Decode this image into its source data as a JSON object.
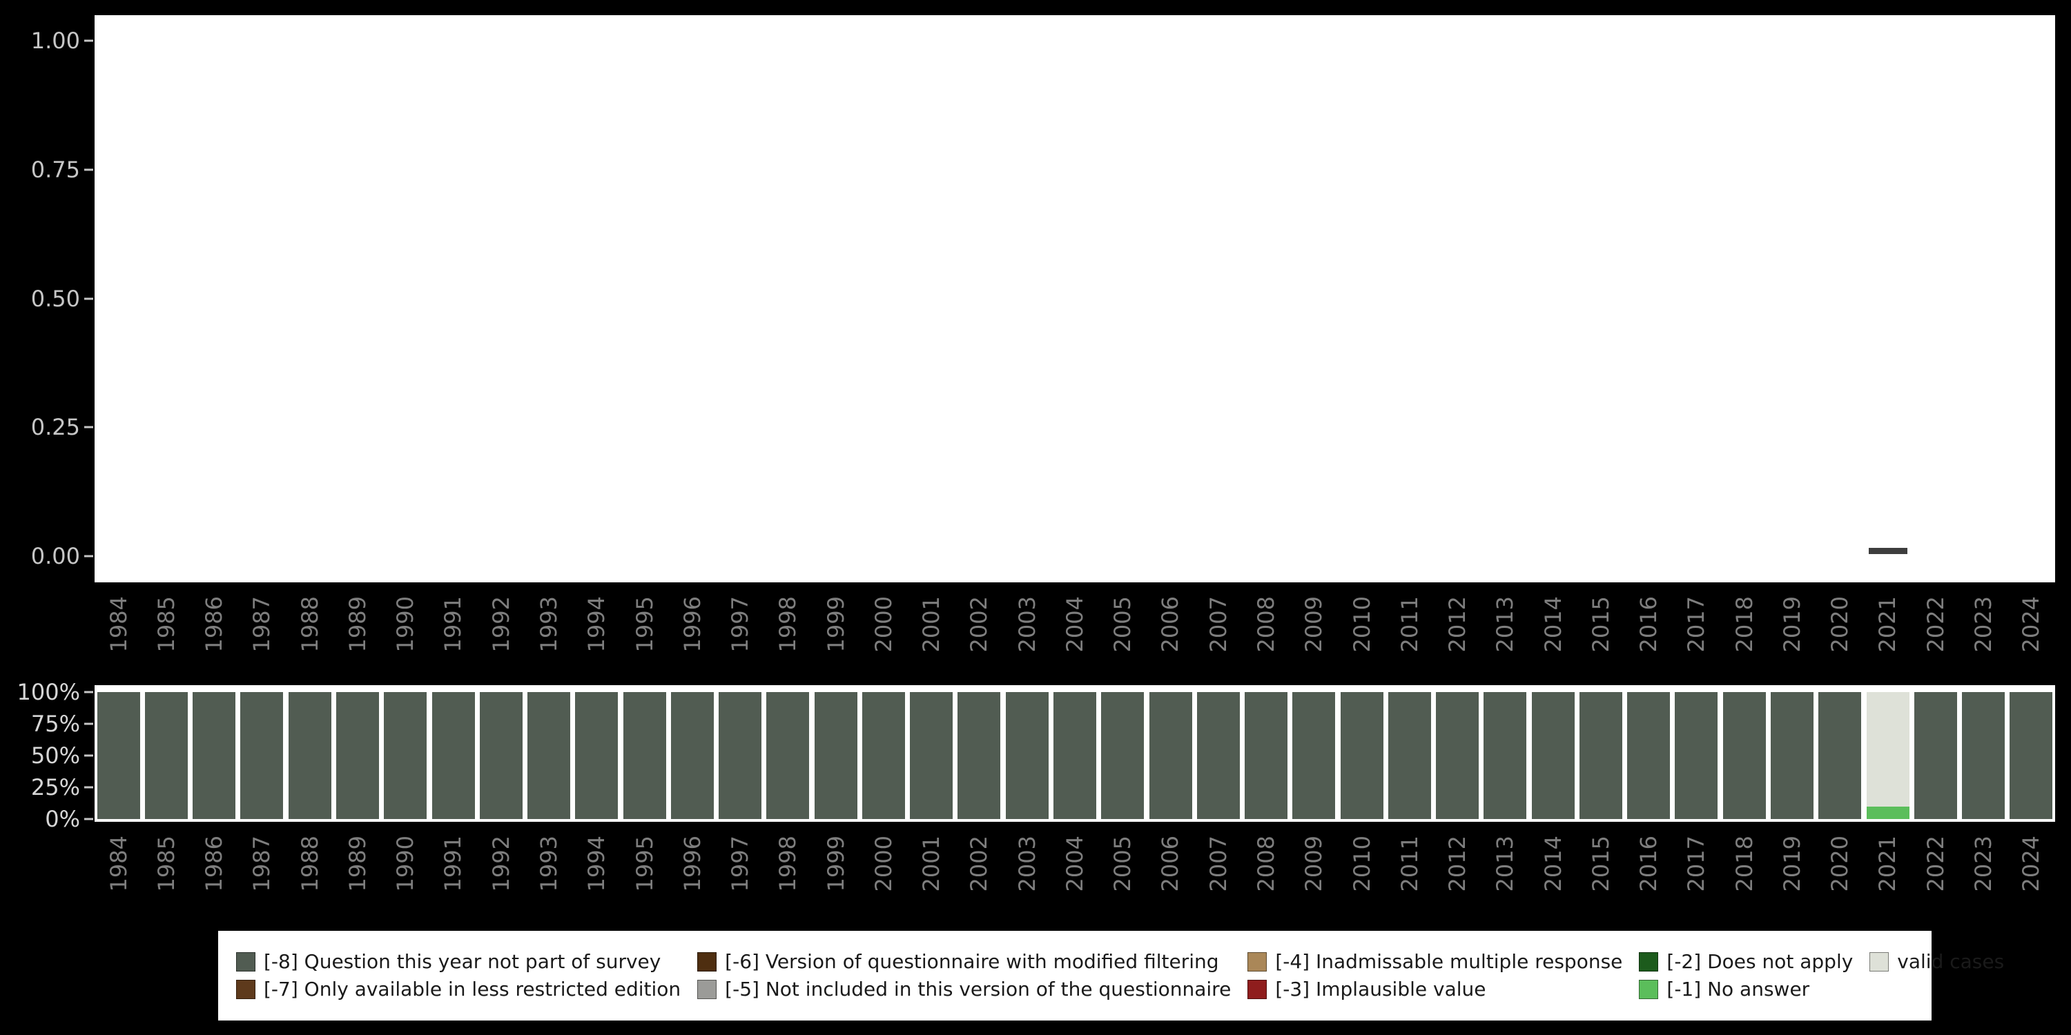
{
  "colors": {
    "page_background": "#000000",
    "panel_background": "#FFFFFF",
    "y_axis_text_top": "#C6C6C6",
    "y_axis_text_bottom": "#D6D6D6",
    "x_axis_year_text": "#7E7E7E",
    "tick_mark": "#C6C6C6",
    "marker": "#3D3D3D",
    "legend_text": "#1A1A1A"
  },
  "legend": {
    "items": [
      {
        "key": "m8",
        "label": "[-8] Question this year not part of survey",
        "color": "#515C52"
      },
      {
        "key": "m7",
        "label": "[-7] Only available in less restricted edition",
        "color": "#5E3A1C"
      },
      {
        "key": "m6",
        "label": "[-6] Version of questionnaire with modified filtering",
        "color": "#4E2E10"
      },
      {
        "key": "m5",
        "label": "[-5] Not included in this version of the questionnaire",
        "color": "#9B9B98"
      },
      {
        "key": "m4",
        "label": "[-4] Inadmissable multiple response",
        "color": "#AA8758"
      },
      {
        "key": "m3",
        "label": "[-3] Implausible value",
        "color": "#8F1D1D"
      },
      {
        "key": "m2",
        "label": "[-2] Does not apply",
        "color": "#1C5B1C"
      },
      {
        "key": "m1",
        "label": "[-1] No answer",
        "color": "#5BBE5B"
      },
      {
        "key": "valid",
        "label": "valid cases",
        "color": "#DEE1D8"
      }
    ]
  },
  "chart_data": [
    {
      "type": "scatter",
      "title": "",
      "xlabel": "",
      "ylabel": "",
      "grid": false,
      "ylim": [
        0,
        1
      ],
      "y_ticks": [
        "1.00",
        "0.75",
        "0.50",
        "0.25",
        "0.00"
      ],
      "marker": "dash",
      "x_categories": [
        "1984",
        "1985",
        "1986",
        "1987",
        "1988",
        "1989",
        "1990",
        "1991",
        "1992",
        "1993",
        "1994",
        "1995",
        "1996",
        "1997",
        "1998",
        "1999",
        "2000",
        "2001",
        "2002",
        "2003",
        "2004",
        "2005",
        "2006",
        "2007",
        "2008",
        "2009",
        "2010",
        "2011",
        "2012",
        "2013",
        "2014",
        "2015",
        "2016",
        "2017",
        "2018",
        "2019",
        "2020",
        "2021",
        "2022",
        "2023",
        "2024"
      ],
      "points": [
        {
          "x": "2021",
          "y": 0.01
        }
      ]
    },
    {
      "type": "bar",
      "stacked": true,
      "percent": true,
      "title": "",
      "xlabel": "",
      "ylabel": "",
      "ylim": [
        0,
        100
      ],
      "y_ticks": [
        "100%",
        "75%",
        "50%",
        "25%",
        "0%"
      ],
      "legend_position": "bottom",
      "categories": [
        "1984",
        "1985",
        "1986",
        "1987",
        "1988",
        "1989",
        "1990",
        "1991",
        "1992",
        "1993",
        "1994",
        "1995",
        "1996",
        "1997",
        "1998",
        "1999",
        "2000",
        "2001",
        "2002",
        "2003",
        "2004",
        "2005",
        "2006",
        "2007",
        "2008",
        "2009",
        "2010",
        "2011",
        "2012",
        "2013",
        "2014",
        "2015",
        "2016",
        "2017",
        "2018",
        "2019",
        "2020",
        "2021",
        "2022",
        "2023",
        "2024"
      ],
      "series": [
        {
          "name": "[-8] Question this year not part of survey",
          "color": "#515C52",
          "values": [
            100,
            100,
            100,
            100,
            100,
            100,
            100,
            100,
            100,
            100,
            100,
            100,
            100,
            100,
            100,
            100,
            100,
            100,
            100,
            100,
            100,
            100,
            100,
            100,
            100,
            100,
            100,
            100,
            100,
            100,
            100,
            100,
            100,
            100,
            100,
            100,
            100,
            0,
            100,
            100,
            100
          ]
        },
        {
          "name": "[-1] No answer",
          "color": "#5BBE5B",
          "values": [
            0,
            0,
            0,
            0,
            0,
            0,
            0,
            0,
            0,
            0,
            0,
            0,
            0,
            0,
            0,
            0,
            0,
            0,
            0,
            0,
            0,
            0,
            0,
            0,
            0,
            0,
            0,
            0,
            0,
            0,
            0,
            0,
            0,
            0,
            0,
            0,
            0,
            10,
            0,
            0,
            0
          ]
        },
        {
          "name": "valid cases",
          "color": "#DEE1D8",
          "values": [
            0,
            0,
            0,
            0,
            0,
            0,
            0,
            0,
            0,
            0,
            0,
            0,
            0,
            0,
            0,
            0,
            0,
            0,
            0,
            0,
            0,
            0,
            0,
            0,
            0,
            0,
            0,
            0,
            0,
            0,
            0,
            0,
            0,
            0,
            0,
            0,
            0,
            90,
            0,
            0,
            0
          ]
        }
      ]
    }
  ]
}
